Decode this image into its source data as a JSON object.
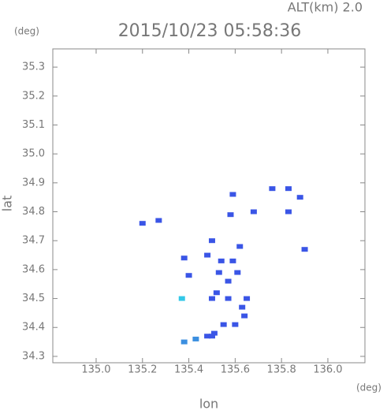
{
  "chart_data": {
    "type": "scatter",
    "title": "2015/10/23 05:58:36",
    "subtitle": "ALT(km) 2.0",
    "x_label": "lon",
    "y_label": "lat",
    "x_unit": "(deg)",
    "y_unit": "(deg)",
    "xlim": [
      134.813,
      136.16
    ],
    "ylim": [
      34.278,
      35.363
    ],
    "xticks": [
      {
        "value": 135.0,
        "label": "135.0"
      },
      135.2,
      135.4,
      135.6,
      135.8,
      {
        "value": 136.0,
        "label": "136.0"
      }
    ],
    "yticks": [
      34.3,
      34.4,
      34.5,
      34.6,
      34.7,
      34.8,
      34.9,
      {
        "value": 35.0,
        "label": "35.0"
      },
      35.1,
      35.2,
      35.3
    ],
    "x": [
      135.2,
      135.27,
      135.76,
      135.83,
      135.88,
      135.59,
      135.58,
      135.68,
      135.83,
      135.9,
      135.5,
      135.62,
      135.48,
      135.54,
      135.59,
      135.38,
      135.53,
      135.61,
      135.57,
      135.4,
      135.52,
      135.57,
      135.5,
      135.37,
      135.65,
      135.63,
      135.64,
      135.55,
      135.6,
      135.51,
      135.48,
      135.38,
      135.43,
      135.5
    ],
    "values": [
      34.76,
      34.77,
      34.88,
      34.88,
      34.85,
      34.86,
      34.79,
      34.8,
      34.8,
      34.67,
      34.7,
      34.68,
      34.65,
      34.63,
      34.63,
      34.64,
      34.59,
      34.59,
      34.56,
      34.58,
      34.52,
      34.5,
      34.5,
      34.5,
      34.5,
      34.47,
      34.44,
      34.41,
      34.41,
      34.38,
      34.37,
      34.35,
      34.36,
      34.37
    ],
    "colors": [
      "#3a55e6",
      "#3a55e6",
      "#3a55e6",
      "#3a55e6",
      "#3a55e6",
      "#3a55e6",
      "#3a55e6",
      "#3a55e6",
      "#3a55e6",
      "#3a55e6",
      "#3a55e6",
      "#3a55e6",
      "#3a55e6",
      "#3a55e6",
      "#3a55e6",
      "#3a55e6",
      "#3a55e6",
      "#3a55e6",
      "#3a55e6",
      "#3a55e6",
      "#3a55e6",
      "#3a55e6",
      "#3a55e6",
      "#33c8e8",
      "#3a55e6",
      "#3a55e6",
      "#3a55e6",
      "#3a55e6",
      "#3a55e6",
      "#3a55e6",
      "#3a55e6",
      "#3b8fe0",
      "#3b8fe0",
      "#3a55e6"
    ]
  }
}
